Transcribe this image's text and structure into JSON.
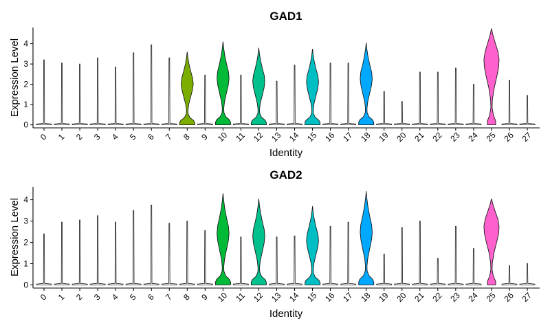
{
  "chart_data": [
    {
      "type": "violin",
      "title": "GAD1",
      "xlabel": "Identity",
      "ylabel": "Expression Level",
      "ylim": [
        -0.15,
        4.8
      ],
      "yticks": [
        0,
        1,
        2,
        3,
        4
      ],
      "categories": [
        "0",
        "1",
        "2",
        "3",
        "4",
        "5",
        "6",
        "7",
        "8",
        "9",
        "10",
        "11",
        "12",
        "13",
        "14",
        "15",
        "16",
        "17",
        "18",
        "19",
        "20",
        "21",
        "22",
        "23",
        "24",
        "25",
        "26",
        "27"
      ],
      "max_values": [
        3.2,
        3.05,
        3.0,
        3.3,
        2.85,
        3.55,
        3.95,
        3.3,
        3.6,
        2.45,
        4.1,
        2.45,
        3.8,
        2.15,
        2.95,
        3.75,
        3.05,
        3.05,
        4.05,
        1.65,
        1.15,
        2.6,
        2.6,
        2.8,
        2.0,
        4.75,
        2.2,
        1.45
      ],
      "filled_groups": [
        "8",
        "10",
        "12",
        "15",
        "18",
        "25"
      ],
      "fill_colors": {
        "8": "#7CAE00",
        "10": "#00BA38",
        "12": "#00C08B",
        "15": "#00BFC4",
        "18": "#00A9FF",
        "25": "#FF61CC"
      }
    },
    {
      "type": "violin",
      "title": "GAD2",
      "xlabel": "Identity",
      "ylabel": "Expression Level",
      "ylim": [
        -0.15,
        4.6
      ],
      "yticks": [
        0,
        1,
        2,
        3,
        4
      ],
      "categories": [
        "0",
        "1",
        "2",
        "3",
        "4",
        "5",
        "6",
        "7",
        "8",
        "9",
        "10",
        "11",
        "12",
        "13",
        "14",
        "15",
        "16",
        "17",
        "18",
        "19",
        "20",
        "21",
        "22",
        "23",
        "24",
        "25",
        "26",
        "27"
      ],
      "max_values": [
        2.4,
        2.95,
        3.05,
        3.25,
        2.95,
        3.5,
        3.75,
        2.9,
        3.0,
        2.55,
        4.3,
        2.25,
        4.05,
        2.25,
        2.3,
        3.7,
        2.75,
        2.95,
        4.4,
        1.45,
        2.7,
        3.0,
        1.25,
        2.75,
        1.7,
        4.05,
        0.9,
        1.0
      ],
      "filled_groups": [
        "10",
        "12",
        "15",
        "18",
        "25"
      ],
      "fill_colors": {
        "10": "#00BA38",
        "12": "#00C08B",
        "15": "#00BFC4",
        "18": "#00A9FF",
        "25": "#FF61CC"
      }
    }
  ]
}
